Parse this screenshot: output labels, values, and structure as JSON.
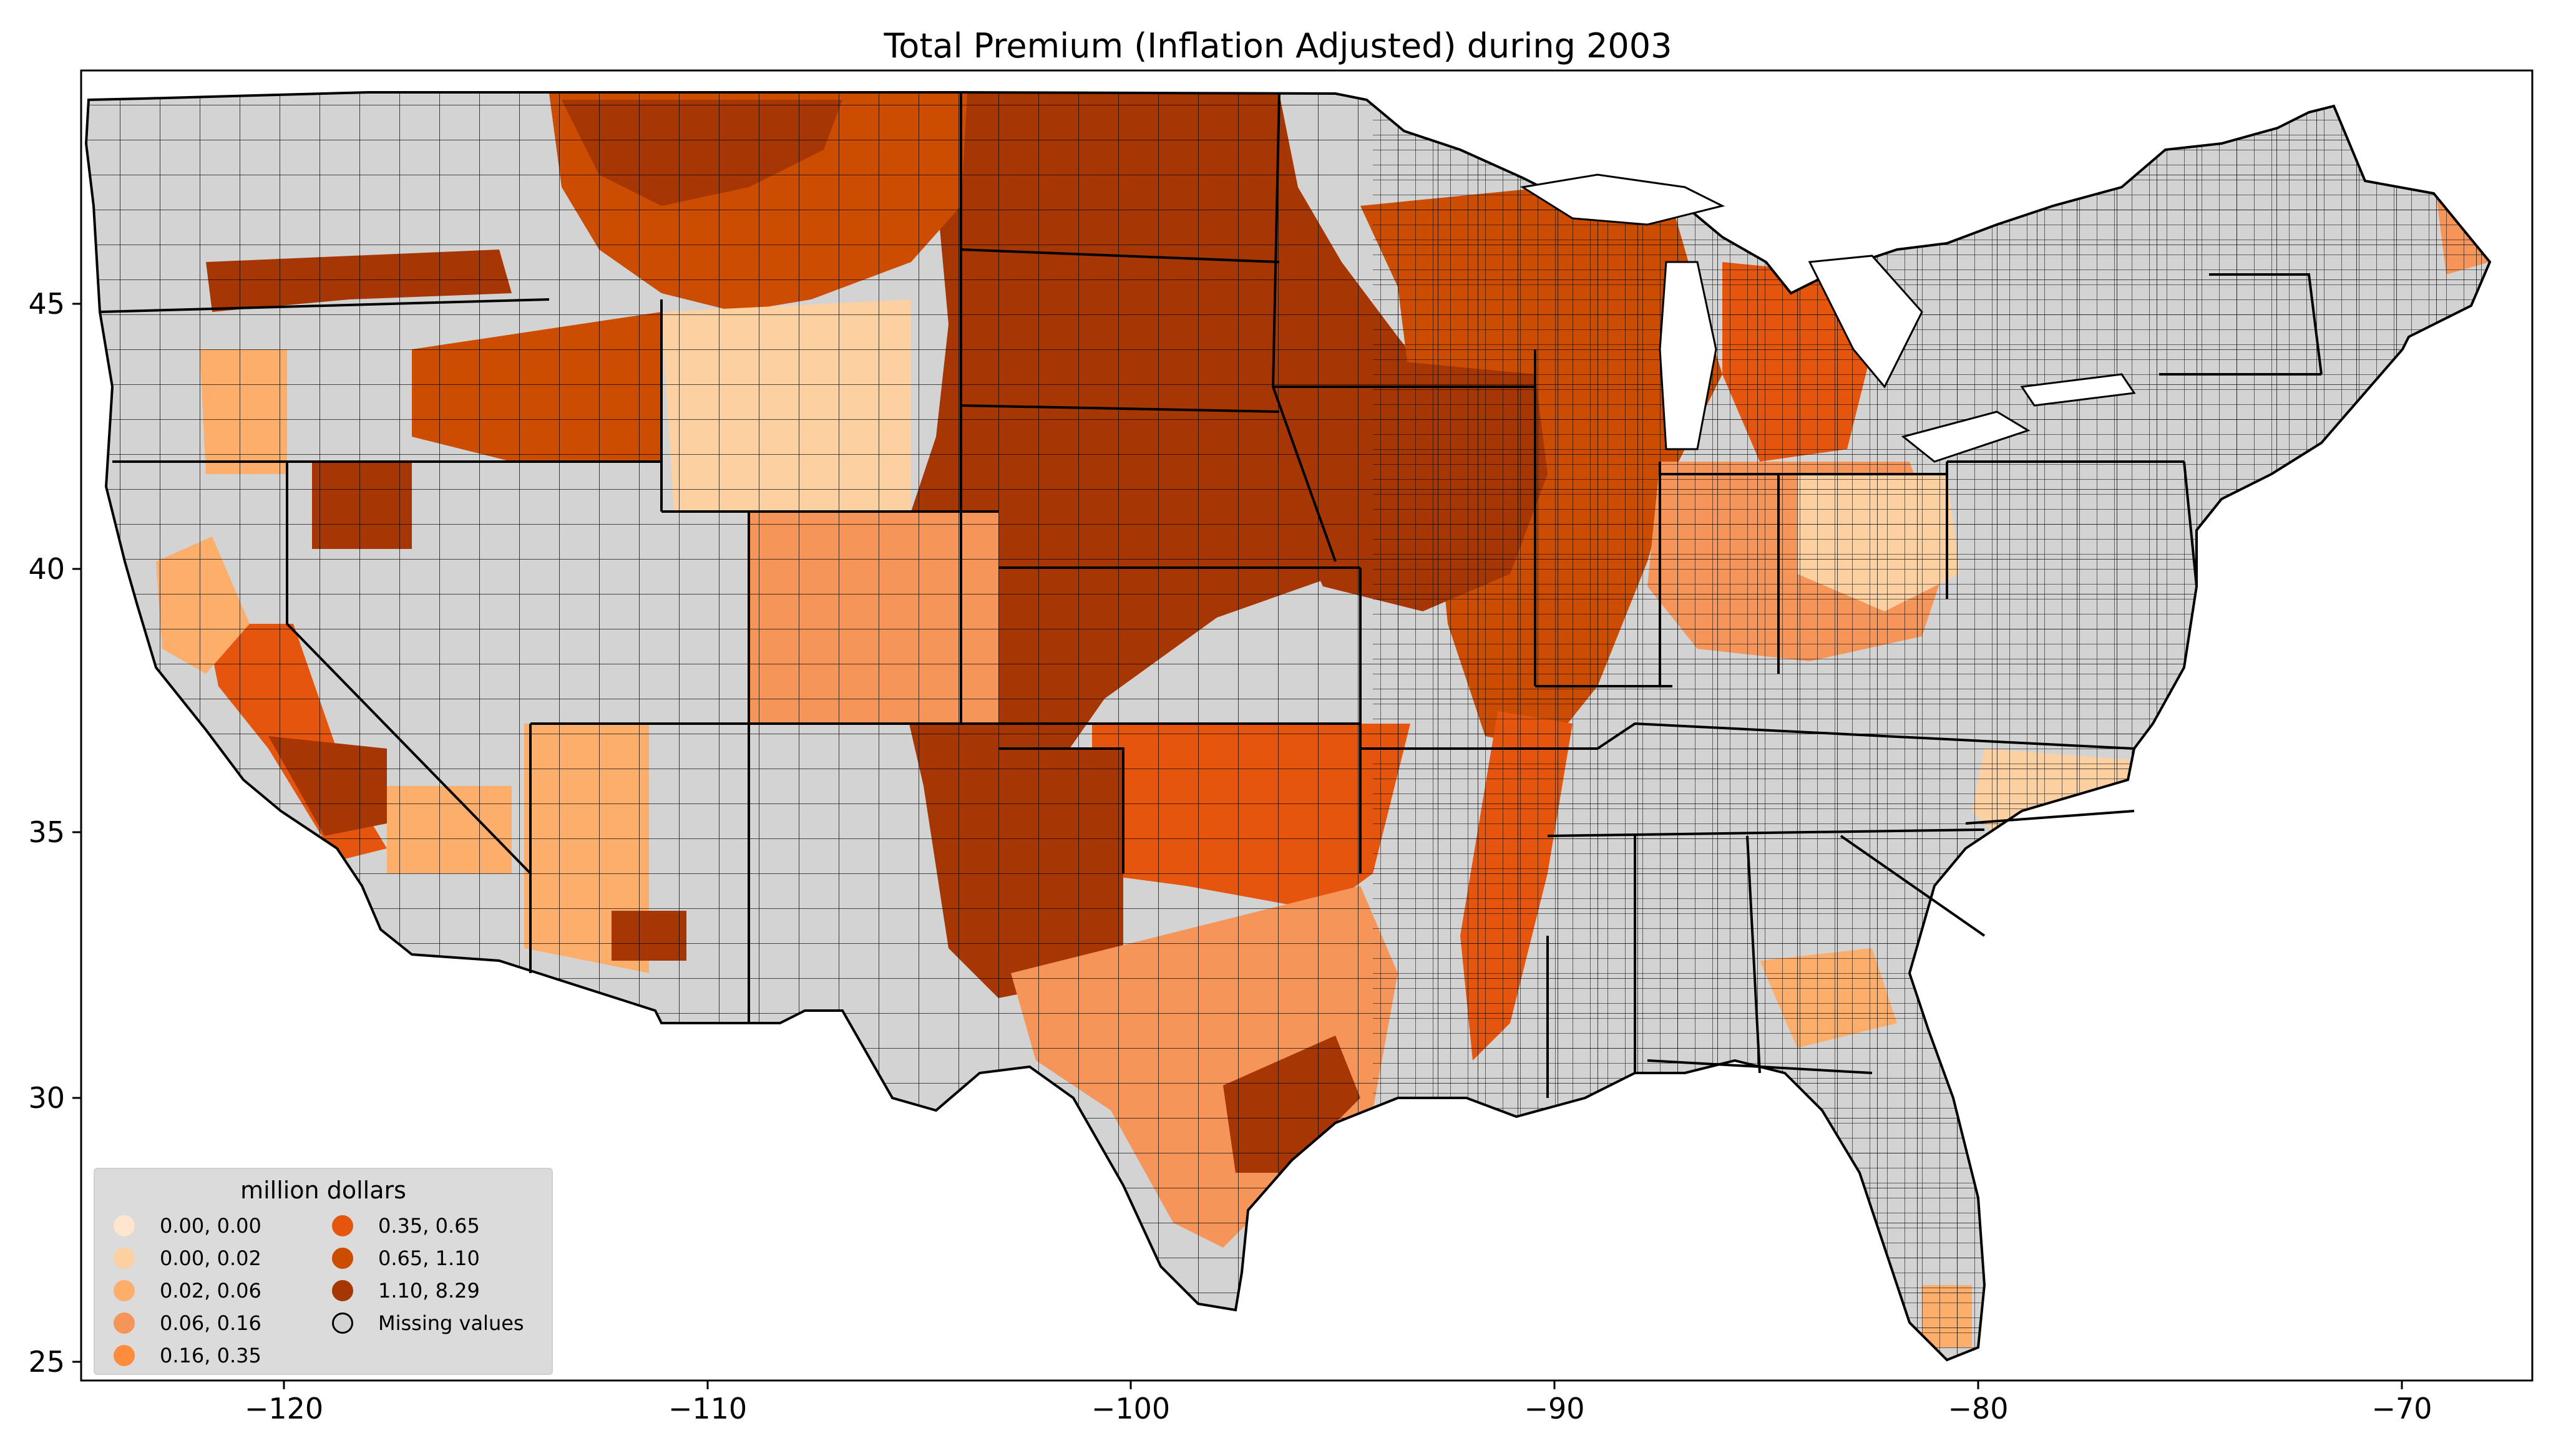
{
  "title": "Total  Premium  (Inflation Adjusted) during 2003",
  "legend": {
    "title": "million dollars",
    "items": [
      {
        "label": "0.00, 0.00",
        "color": "#fee6ce"
      },
      {
        "label": "0.00, 0.02",
        "color": "#fdd0a2"
      },
      {
        "label": "0.02, 0.06",
        "color": "#fdae6b"
      },
      {
        "label": "0.06, 0.16",
        "color": "#f5955a"
      },
      {
        "label": "0.16, 0.35",
        "color": "#fd8d3c"
      },
      {
        "label": "0.35, 0.65",
        "color": "#e6550d"
      },
      {
        "label": "0.65, 1.10",
        "color": "#cc4c02"
      },
      {
        "label": "1.10, 8.29",
        "color": "#a63603"
      },
      {
        "label": "Missing values",
        "color": "#d3d3d3"
      }
    ]
  },
  "x_ticks": [
    "−120",
    "−110",
    "−100",
    "−90",
    "−80",
    "−70"
  ],
  "y_ticks": [
    "45",
    "40",
    "35",
    "30",
    "25"
  ],
  "chart_data": {
    "type": "choropleth",
    "title": "Total  Premium  (Inflation Adjusted) during 2003",
    "xlim": [
      -124.8,
      -66.9
    ],
    "ylim": [
      24.5,
      49.5
    ],
    "x_ticks": [
      -120,
      -110,
      -100,
      -90,
      -80,
      -70
    ],
    "y_ticks": [
      25,
      30,
      35,
      40,
      45
    ],
    "legend_title": "million dollars",
    "legend_position": "lower-left",
    "bins": [
      {
        "label": "0.00, 0.00",
        "min": 0.0,
        "max": 0.0,
        "color": "#fee6ce"
      },
      {
        "label": "0.00, 0.02",
        "min": 0.0,
        "max": 0.02,
        "color": "#fdd0a2"
      },
      {
        "label": "0.02, 0.06",
        "min": 0.02,
        "max": 0.06,
        "color": "#fdae6b"
      },
      {
        "label": "0.06, 0.16",
        "min": 0.06,
        "max": 0.16,
        "color": "#f5955a"
      },
      {
        "label": "0.16, 0.35",
        "min": 0.16,
        "max": 0.35,
        "color": "#fd8d3c"
      },
      {
        "label": "0.35, 0.65",
        "min": 0.35,
        "max": 0.65,
        "color": "#e6550d"
      },
      {
        "label": "0.65, 1.10",
        "min": 0.65,
        "max": 1.1,
        "color": "#cc4c02"
      },
      {
        "label": "1.10, 8.29",
        "min": 1.1,
        "max": 8.29,
        "color": "#a63603"
      }
    ],
    "missing_color": "#d3d3d3"
  }
}
